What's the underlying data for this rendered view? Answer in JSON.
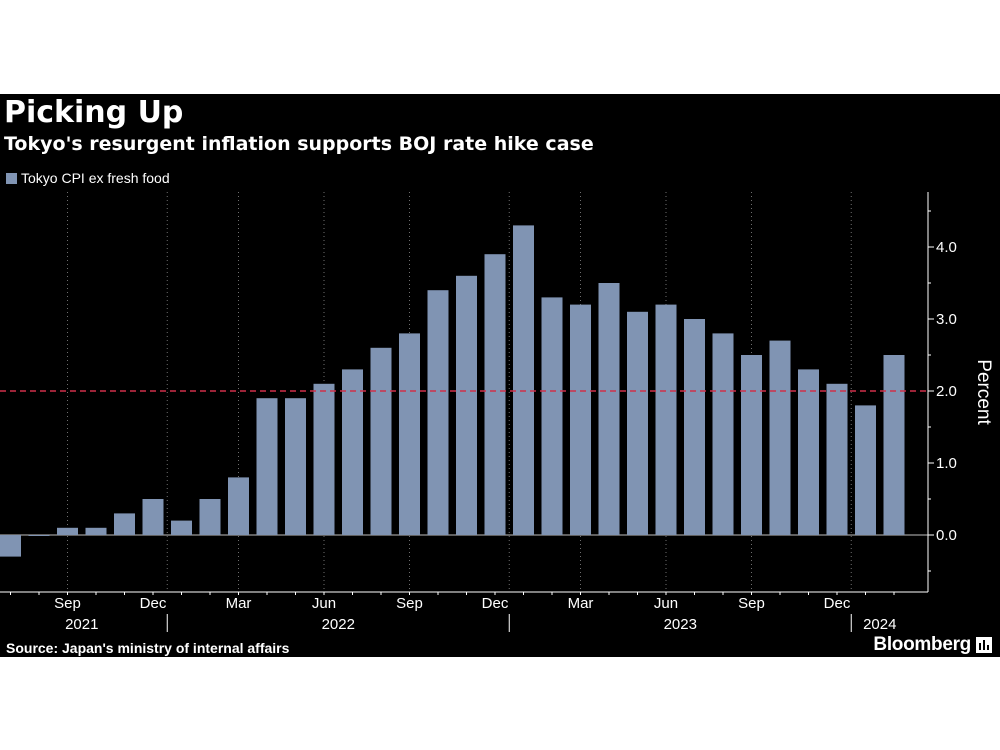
{
  "header": {
    "title": "Picking Up",
    "subtitle": "Tokyo's resurgent inflation supports BOJ rate hike case"
  },
  "footer": {
    "source": "Source: Japan's ministry of internal affairs",
    "brand": "Bloomberg"
  },
  "colors": {
    "background": "#000000",
    "bar": "#8094b3",
    "reference_line": "#d0304a",
    "grid": "#6f6f6f",
    "text": "#ffffff"
  },
  "chart_data": {
    "type": "bar",
    "title": "Picking Up",
    "subtitle": "Tokyo's resurgent inflation supports BOJ rate hike case",
    "ylabel": "Percent",
    "xlabel": "",
    "ylim": [
      -0.8,
      4.8
    ],
    "yticks": [
      "0.0",
      "1.0",
      "2.0",
      "3.0",
      "4.0"
    ],
    "y_axis_side": "right",
    "reference_line": 2.0,
    "grid": "vertical dotted",
    "legend_position": "top-left",
    "series": [
      {
        "name": "Tokyo CPI ex fresh food",
        "categories": [
          "Jul 2021",
          "Aug 2021",
          "Sep 2021",
          "Oct 2021",
          "Nov 2021",
          "Dec 2021",
          "Jan 2022",
          "Feb 2022",
          "Mar 2022",
          "Apr 2022",
          "May 2022",
          "Jun 2022",
          "Jul 2022",
          "Aug 2022",
          "Sep 2022",
          "Oct 2022",
          "Nov 2022",
          "Dec 2022",
          "Jan 2023",
          "Feb 2023",
          "Mar 2023",
          "Apr 2023",
          "May 2023",
          "Jun 2023",
          "Jul 2023",
          "Aug 2023",
          "Sep 2023",
          "Oct 2023",
          "Nov 2023",
          "Dec 2023",
          "Jan 2024",
          "Feb 2024"
        ],
        "values": [
          -0.3,
          0.0,
          0.1,
          0.1,
          0.3,
          0.5,
          0.2,
          0.5,
          0.8,
          1.9,
          1.9,
          2.1,
          2.3,
          2.6,
          2.8,
          3.4,
          3.6,
          3.9,
          4.3,
          3.3,
          3.2,
          3.5,
          3.1,
          3.2,
          3.0,
          2.8,
          2.5,
          2.7,
          2.3,
          2.1,
          1.8,
          2.5
        ]
      }
    ],
    "x_tick_labels": [
      {
        "label": "Sep",
        "index": 2
      },
      {
        "label": "Dec",
        "index": 5
      },
      {
        "label": "Mar",
        "index": 8
      },
      {
        "label": "Jun",
        "index": 11
      },
      {
        "label": "Sep",
        "index": 14
      },
      {
        "label": "Dec",
        "index": 17
      },
      {
        "label": "Mar",
        "index": 20
      },
      {
        "label": "Jun",
        "index": 23
      },
      {
        "label": "Sep",
        "index": 26
      },
      {
        "label": "Dec",
        "index": 29
      }
    ],
    "year_labels": [
      {
        "label": "2021",
        "start": 0,
        "end": 5
      },
      {
        "label": "2022",
        "start": 6,
        "end": 17
      },
      {
        "label": "2023",
        "start": 18,
        "end": 29
      },
      {
        "label": "2024",
        "start": 30,
        "end": 31
      }
    ]
  }
}
